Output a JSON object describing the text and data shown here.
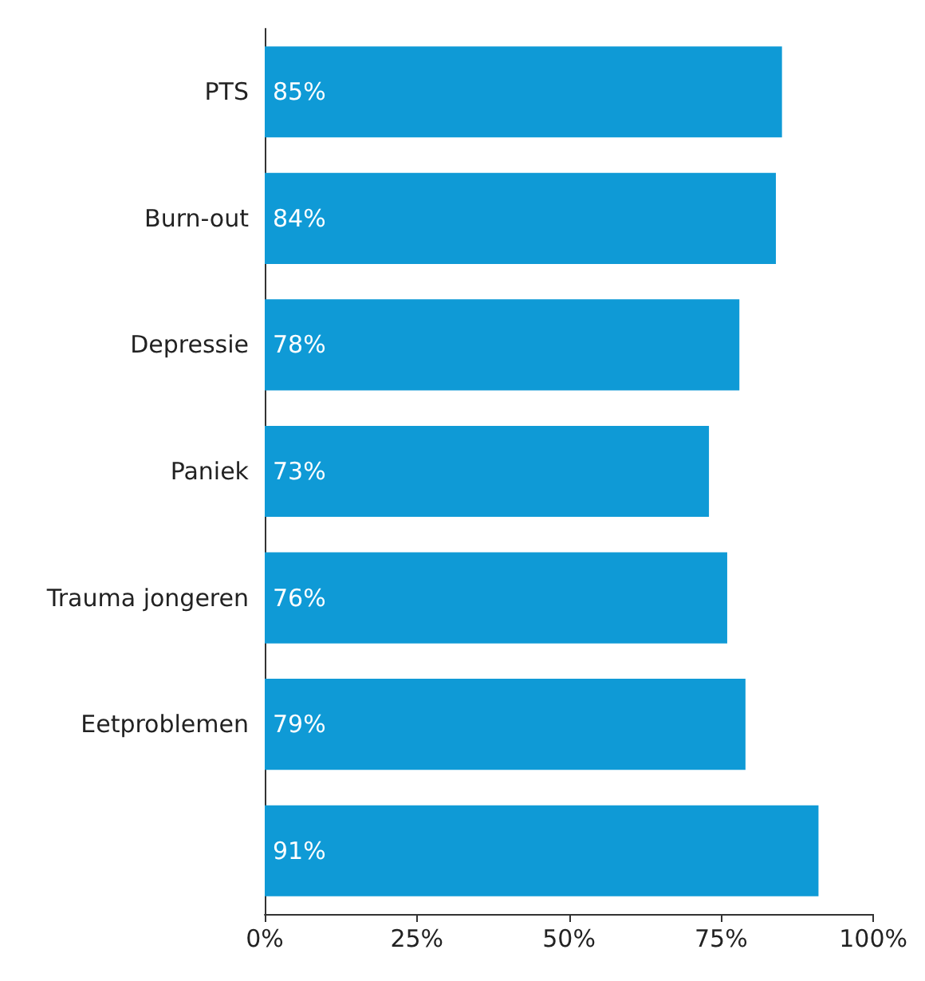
{
  "chart_data": {
    "type": "bar",
    "orientation": "horizontal",
    "categories": [
      "PTS",
      "Burn-out",
      "Depressie",
      "Paniek",
      "Trauma jongeren",
      "Eetproblemen",
      null
    ],
    "values": [
      85,
      84,
      78,
      73,
      76,
      79,
      91
    ],
    "value_labels": [
      "85%",
      "84%",
      "78%",
      "73%",
      "76%",
      "79%",
      "91%"
    ],
    "color": "#0f9ad6",
    "xlim": [
      0,
      100
    ],
    "xticks": [
      {
        "value": 0,
        "label": "0%"
      },
      {
        "value": 25,
        "label": "25%"
      },
      {
        "value": 50,
        "label": "50%"
      },
      {
        "value": 75,
        "label": "75%"
      },
      {
        "value": 100,
        "label": "100%"
      }
    ],
    "grid": false
  }
}
